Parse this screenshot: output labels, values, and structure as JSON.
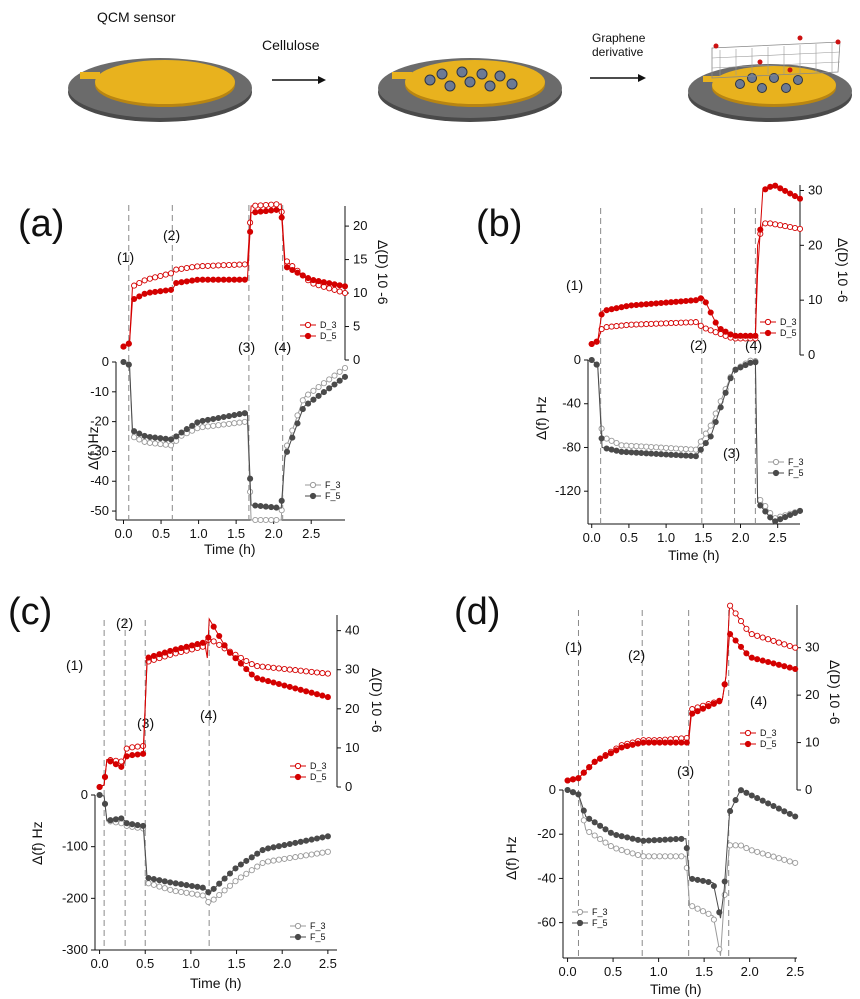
{
  "figure": {
    "top": {
      "sensor_label": "QCM sensor",
      "step1_label": "Cellulose",
      "step2_label_line1": "Graphene",
      "step2_label_line2": "derivative"
    },
    "colors": {
      "red": "#d40000",
      "dark": "#4a4a4a",
      "grey": "#9a9a9a",
      "gold": "#e8b21e",
      "disk": "#555555"
    }
  },
  "chart_data": [
    {
      "panel": "(a)",
      "type": "line",
      "xlabel": "Time (h)",
      "y_left_label": "Δ(f )Hz",
      "y_right_label": "Δ(D) 10 -6",
      "xlim": [
        -0.1,
        2.95
      ],
      "x_ticks": [
        "0.0",
        "0.5",
        "1.0",
        "1.5",
        "2.0",
        "2.5"
      ],
      "f_ylim": [
        -53,
        0
      ],
      "f_ticks": [
        "0",
        "-10",
        "-20",
        "-30",
        "-40",
        "-50"
      ],
      "d_ylim": [
        0,
        23
      ],
      "d_ticks": [
        "0",
        "5",
        "10",
        "15",
        "20"
      ],
      "steps": [
        {
          "x": 0.07,
          "label": "(1)"
        },
        {
          "x": 0.65,
          "label": "(2)"
        },
        {
          "x": 1.67,
          "label": "(3)"
        },
        {
          "x": 2.12,
          "label": "(4)"
        }
      ],
      "legend_d": [
        "D_3",
        "D_5"
      ],
      "legend_f": [
        "F_3",
        "F_5"
      ],
      "series": [
        {
          "name": "D_3",
          "points": [
            [
              0,
              2
            ],
            [
              0.08,
              2.5
            ],
            [
              0.12,
              11
            ],
            [
              0.3,
              12
            ],
            [
              0.65,
              13
            ],
            [
              0.7,
              13.5
            ],
            [
              1.0,
              14
            ],
            [
              1.65,
              14.3
            ],
            [
              1.7,
              23
            ],
            [
              2.1,
              23.3
            ],
            [
              2.15,
              15
            ],
            [
              2.5,
              11.5
            ],
            [
              2.95,
              10
            ]
          ]
        },
        {
          "name": "D_5",
          "points": [
            [
              0,
              2
            ],
            [
              0.08,
              2.5
            ],
            [
              0.12,
              9
            ],
            [
              0.3,
              10
            ],
            [
              0.65,
              10.5
            ],
            [
              0.7,
              11.5
            ],
            [
              1.0,
              12
            ],
            [
              1.65,
              12
            ],
            [
              1.7,
              22
            ],
            [
              2.1,
              22.5
            ],
            [
              2.15,
              14
            ],
            [
              2.5,
              12
            ],
            [
              2.95,
              11
            ]
          ]
        },
        {
          "name": "F_3",
          "points": [
            [
              0,
              0
            ],
            [
              0.08,
              -1
            ],
            [
              0.12,
              -25
            ],
            [
              0.3,
              -27
            ],
            [
              0.65,
              -28
            ],
            [
              0.75,
              -25
            ],
            [
              1.0,
              -22
            ],
            [
              1.65,
              -20
            ],
            [
              1.7,
              -53
            ],
            [
              2.1,
              -53
            ],
            [
              2.15,
              -30
            ],
            [
              2.4,
              -12
            ],
            [
              2.95,
              -2
            ]
          ]
        },
        {
          "name": "F_5",
          "points": [
            [
              0,
              0
            ],
            [
              0.08,
              -1
            ],
            [
              0.12,
              -23
            ],
            [
              0.3,
              -25
            ],
            [
              0.65,
              -26
            ],
            [
              0.75,
              -24
            ],
            [
              1.0,
              -20
            ],
            [
              1.65,
              -17
            ],
            [
              1.7,
              -48
            ],
            [
              2.1,
              -49
            ],
            [
              2.15,
              -32
            ],
            [
              2.4,
              -15
            ],
            [
              2.95,
              -5
            ]
          ]
        }
      ]
    },
    {
      "panel": "(b)",
      "type": "line",
      "xlabel": "Time (h)",
      "y_left_label": "Δ(f) Hz",
      "y_right_label": "Δ(D) 10 -6",
      "xlim": [
        -0.05,
        2.8
      ],
      "x_ticks": [
        "0.0",
        "0.5",
        "1.0",
        "1.5",
        "2.0",
        "2.5"
      ],
      "f_ylim": [
        -150,
        0
      ],
      "f_ticks": [
        "0",
        "-40",
        "-80",
        "-120"
      ],
      "d_ylim": [
        0,
        31
      ],
      "d_ticks": [
        "0",
        "10",
        "20",
        "30"
      ],
      "steps": [
        {
          "x": 0.12,
          "label": "(1)"
        },
        {
          "x": 1.48,
          "label": "(2)"
        },
        {
          "x": 1.92,
          "label": "(3)"
        },
        {
          "x": 2.2,
          "label": "(4)"
        }
      ],
      "legend_d": [
        "D_3",
        "D_5"
      ],
      "legend_f": [
        "F_3",
        "F_5"
      ],
      "series": [
        {
          "name": "D_3",
          "points": [
            [
              0,
              2
            ],
            [
              0.08,
              2.5
            ],
            [
              0.14,
              5
            ],
            [
              0.5,
              5.5
            ],
            [
              1.4,
              6
            ],
            [
              1.5,
              5
            ],
            [
              1.9,
              3
            ],
            [
              2.2,
              3
            ],
            [
              2.23,
              20
            ],
            [
              2.3,
              24
            ],
            [
              2.4,
              24
            ],
            [
              2.8,
              23
            ]
          ]
        },
        {
          "name": "D_5",
          "points": [
            [
              0,
              2
            ],
            [
              0.08,
              2.5
            ],
            [
              0.14,
              8
            ],
            [
              0.5,
              9
            ],
            [
              1.4,
              10
            ],
            [
              1.5,
              10.5
            ],
            [
              1.7,
              5
            ],
            [
              1.9,
              3.5
            ],
            [
              2.2,
              3.5
            ],
            [
              2.23,
              15
            ],
            [
              2.3,
              30
            ],
            [
              2.45,
              31
            ],
            [
              2.8,
              28.5
            ]
          ]
        },
        {
          "name": "F_3",
          "points": [
            [
              0,
              0
            ],
            [
              0.08,
              -5
            ],
            [
              0.14,
              -70
            ],
            [
              0.4,
              -78
            ],
            [
              1.4,
              -82
            ],
            [
              1.6,
              -60
            ],
            [
              1.9,
              -10
            ],
            [
              2.15,
              0
            ],
            [
              2.2,
              -1
            ],
            [
              2.23,
              -125
            ],
            [
              2.35,
              -135
            ],
            [
              2.45,
              -145
            ],
            [
              2.8,
              -138
            ]
          ]
        },
        {
          "name": "F_5",
          "points": [
            [
              0,
              0
            ],
            [
              0.08,
              -5
            ],
            [
              0.14,
              -80
            ],
            [
              0.4,
              -84
            ],
            [
              1.4,
              -88
            ],
            [
              1.6,
              -70
            ],
            [
              1.9,
              -10
            ],
            [
              2.15,
              -2
            ],
            [
              2.2,
              -2
            ],
            [
              2.23,
              -130
            ],
            [
              2.35,
              -140
            ],
            [
              2.45,
              -148
            ],
            [
              2.8,
              -138
            ]
          ]
        }
      ]
    },
    {
      "panel": "(c)",
      "type": "line",
      "xlabel": "Time (h)",
      "y_left_label": "Δ(f) Hz",
      "y_right_label": "Δ(D) 10 -6",
      "xlim": [
        -0.05,
        2.6
      ],
      "x_ticks": [
        "0.0",
        "0.5",
        "1.0",
        "1.5",
        "2.0",
        "2.5"
      ],
      "f_ylim": [
        -300,
        0
      ],
      "f_ticks": [
        "0",
        "-100",
        "-200",
        "-300"
      ],
      "d_ylim": [
        0,
        44
      ],
      "d_ticks": [
        "0",
        "10",
        "20",
        "30",
        "40"
      ],
      "steps": [
        {
          "x": 0.05,
          "label": "(1)"
        },
        {
          "x": 0.28,
          "label": "(2)"
        },
        {
          "x": 0.5,
          "label": "(3)"
        },
        {
          "x": 1.2,
          "label": "(4)"
        }
      ],
      "legend_d": [
        "D_3",
        "D_5"
      ],
      "legend_f": [
        "F_3",
        "F_5"
      ],
      "series": [
        {
          "name": "D_3",
          "points": [
            [
              0,
              0
            ],
            [
              0.05,
              0.5
            ],
            [
              0.08,
              7
            ],
            [
              0.25,
              6.5
            ],
            [
              0.3,
              10
            ],
            [
              0.48,
              10.5
            ],
            [
              0.52,
              32
            ],
            [
              0.8,
              34
            ],
            [
              1.15,
              36
            ],
            [
              1.2,
              38
            ],
            [
              1.4,
              35
            ],
            [
              1.7,
              31
            ],
            [
              2.5,
              29
            ]
          ]
        },
        {
          "name": "D_5",
          "points": [
            [
              0,
              0
            ],
            [
              0.05,
              0.5
            ],
            [
              0.08,
              7
            ],
            [
              0.25,
              5
            ],
            [
              0.3,
              8
            ],
            [
              0.48,
              8.5
            ],
            [
              0.52,
              33
            ],
            [
              0.8,
              35
            ],
            [
              1.15,
              37
            ],
            [
              1.18,
              33
            ],
            [
              1.2,
              43
            ],
            [
              1.4,
              35
            ],
            [
              1.7,
              28
            ],
            [
              2.5,
              23
            ]
          ]
        },
        {
          "name": "F_3",
          "points": [
            [
              0,
              0
            ],
            [
              0.05,
              -2
            ],
            [
              0.08,
              -50
            ],
            [
              0.25,
              -55
            ],
            [
              0.3,
              -60
            ],
            [
              0.48,
              -65
            ],
            [
              0.52,
              -170
            ],
            [
              0.8,
              -185
            ],
            [
              1.15,
              -195
            ],
            [
              1.2,
              -210
            ],
            [
              1.5,
              -165
            ],
            [
              1.8,
              -130
            ],
            [
              2.5,
              -110
            ]
          ]
        },
        {
          "name": "F_5",
          "points": [
            [
              0,
              0
            ],
            [
              0.05,
              -2
            ],
            [
              0.08,
              -50
            ],
            [
              0.25,
              -45
            ],
            [
              0.3,
              -55
            ],
            [
              0.48,
              -60
            ],
            [
              0.52,
              -160
            ],
            [
              0.8,
              -170
            ],
            [
              1.15,
              -180
            ],
            [
              1.2,
              -190
            ],
            [
              1.5,
              -140
            ],
            [
              1.8,
              -105
            ],
            [
              2.5,
              -80
            ]
          ]
        }
      ]
    },
    {
      "panel": "(d)",
      "type": "line",
      "xlabel": "Time (h)",
      "y_left_label": "Δ(f) Hz",
      "y_right_label": "Δ(D) 10 -6",
      "xlim": [
        -0.05,
        2.52
      ],
      "x_ticks": [
        "0.0",
        "0.5",
        "1.0",
        "1.5",
        "2.0",
        "2.5"
      ],
      "f_ylim": [
        -76,
        0
      ],
      "f_ticks": [
        "0",
        "-20",
        "-40",
        "-60"
      ],
      "d_ylim": [
        0,
        39
      ],
      "d_ticks": [
        "0",
        "10",
        "20",
        "30"
      ],
      "steps": [
        {
          "x": 0.12,
          "label": "(1)"
        },
        {
          "x": 0.82,
          "label": "(2)"
        },
        {
          "x": 1.33,
          "label": "(3)"
        },
        {
          "x": 1.77,
          "label": "(4)"
        }
      ],
      "legend_d": [
        "D_3",
        "D_5"
      ],
      "legend_f": [
        "F_3",
        "F_5"
      ],
      "series": [
        {
          "name": "D_3",
          "points": [
            [
              0,
              2
            ],
            [
              0.12,
              2.5
            ],
            [
              0.3,
              6
            ],
            [
              0.6,
              9.5
            ],
            [
              0.82,
              10.5
            ],
            [
              1.0,
              10.5
            ],
            [
              1.33,
              11
            ],
            [
              1.36,
              17
            ],
            [
              1.7,
              19
            ],
            [
              1.74,
              24
            ],
            [
              1.78,
              39
            ],
            [
              2.0,
              33
            ],
            [
              2.5,
              30
            ]
          ]
        },
        {
          "name": "D_5",
          "points": [
            [
              0,
              2
            ],
            [
              0.12,
              2.5
            ],
            [
              0.3,
              6
            ],
            [
              0.6,
              9
            ],
            [
              0.82,
              10
            ],
            [
              1.0,
              10
            ],
            [
              1.33,
              10
            ],
            [
              1.36,
              16
            ],
            [
              1.7,
              19
            ],
            [
              1.74,
              24
            ],
            [
              1.78,
              33
            ],
            [
              2.0,
              28
            ],
            [
              2.5,
              25.5
            ]
          ]
        },
        {
          "name": "F_3",
          "points": [
            [
              0,
              0
            ],
            [
              0.12,
              -2
            ],
            [
              0.2,
              -18
            ],
            [
              0.5,
              -26
            ],
            [
              0.82,
              -30
            ],
            [
              1.3,
              -30
            ],
            [
              1.34,
              -52
            ],
            [
              1.6,
              -57
            ],
            [
              1.68,
              -75
            ],
            [
              1.72,
              -50
            ],
            [
              1.78,
              -25
            ],
            [
              1.9,
              -25
            ],
            [
              2.0,
              -27
            ],
            [
              2.5,
              -33
            ]
          ]
        },
        {
          "name": "F_5",
          "points": [
            [
              0,
              0
            ],
            [
              0.12,
              -2
            ],
            [
              0.2,
              -12
            ],
            [
              0.5,
              -20
            ],
            [
              0.82,
              -23
            ],
            [
              1.3,
              -22
            ],
            [
              1.34,
              -40
            ],
            [
              1.6,
              -42
            ],
            [
              1.68,
              -58
            ],
            [
              1.72,
              -45
            ],
            [
              1.78,
              -10
            ],
            [
              1.9,
              0
            ],
            [
              2.0,
              -2
            ],
            [
              2.5,
              -12
            ]
          ]
        }
      ]
    }
  ]
}
